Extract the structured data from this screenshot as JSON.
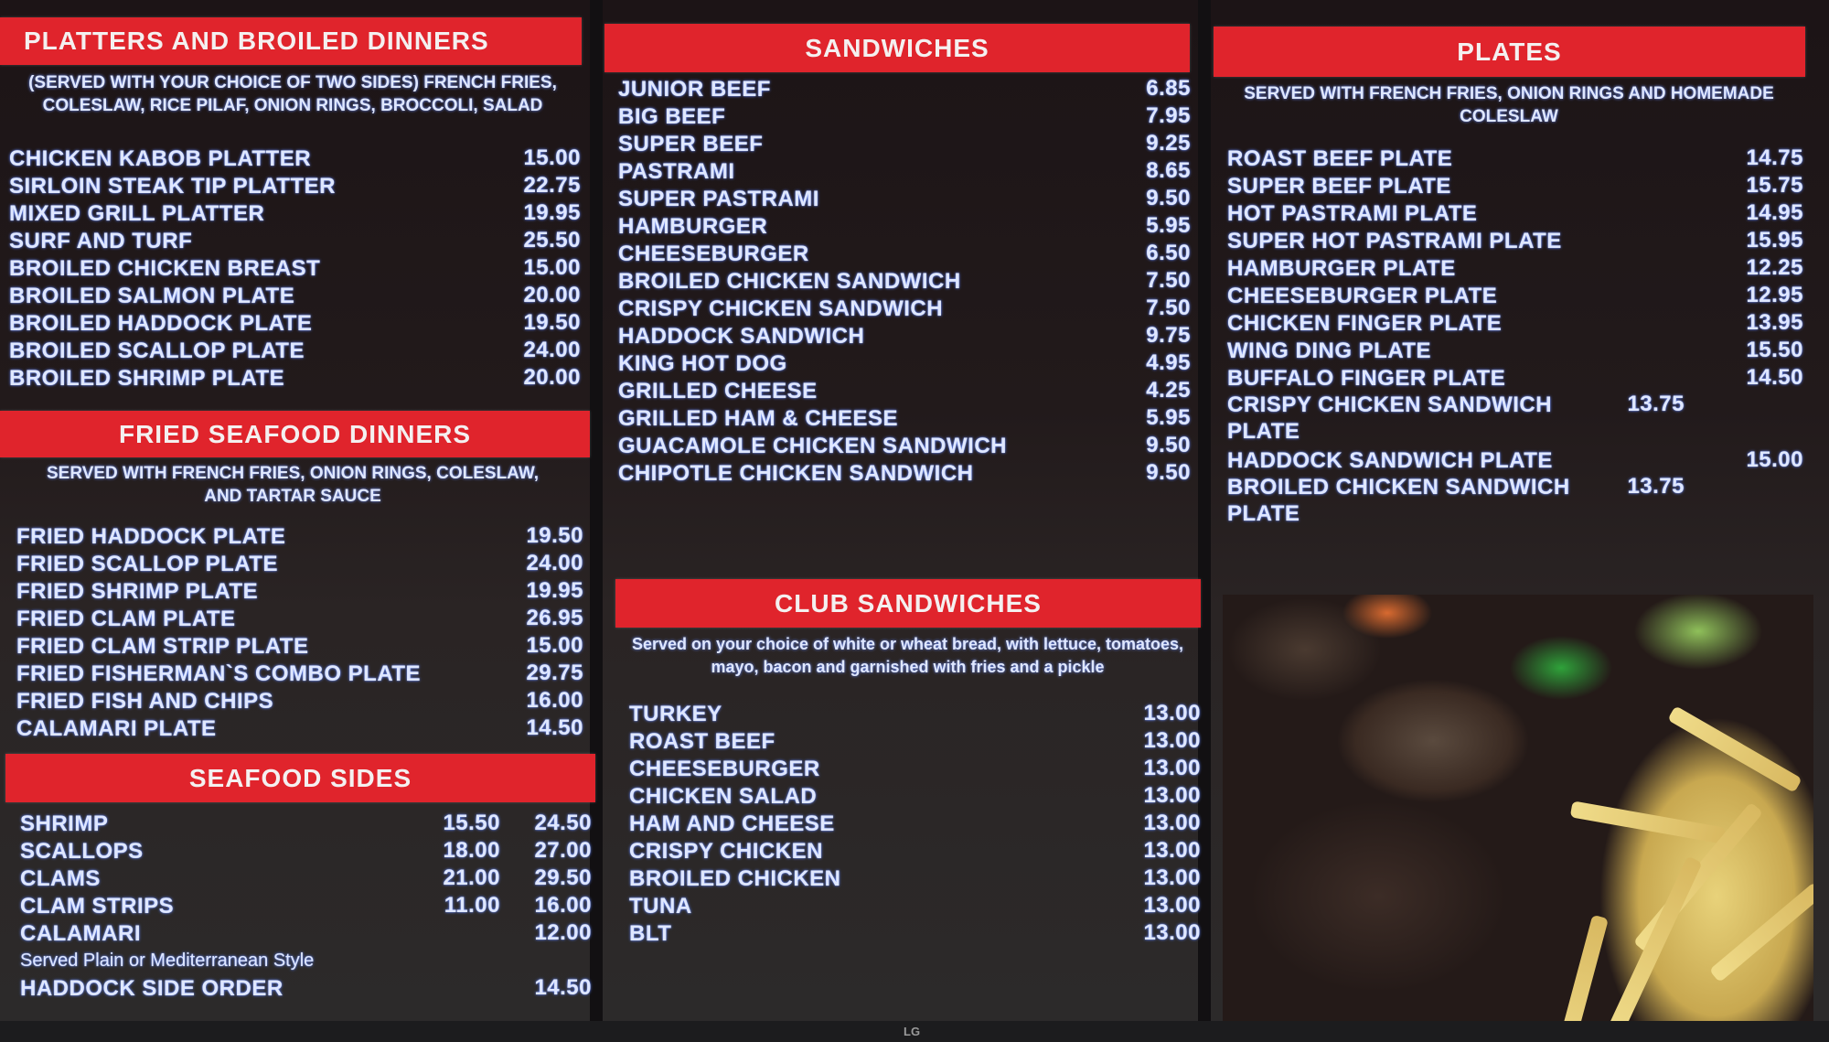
{
  "brand": "LG",
  "platters": {
    "title": "PLATTERS AND BROILED DINNERS",
    "note": "(SERVED WITH YOUR CHOICE OF TWO SIDES) FRENCH FRIES, COLESLAW, RICE PILAF, ONION RINGS, BROCCOLI, SALAD",
    "items": [
      {
        "name": "CHICKEN KABOB PLATTER",
        "price": "15.00"
      },
      {
        "name": "SIRLOIN STEAK TIP PLATTER",
        "price": "22.75"
      },
      {
        "name": "MIXED GRILL PLATTER",
        "price": "19.95"
      },
      {
        "name": "SURF AND TURF",
        "price": "25.50"
      },
      {
        "name": "BROILED CHICKEN BREAST",
        "price": "15.00"
      },
      {
        "name": "BROILED SALMON PLATE",
        "price": "20.00"
      },
      {
        "name": "BROILED HADDOCK PLATE",
        "price": "19.50"
      },
      {
        "name": "BROILED SCALLOP PLATE",
        "price": "24.00"
      },
      {
        "name": "BROILED SHRIMP PLATE",
        "price": "20.00"
      }
    ]
  },
  "fried": {
    "title": "FRIED SEAFOOD DINNERS",
    "note": "SERVED WITH FRENCH FRIES, ONION RINGS, COLESLAW, AND TARTAR SAUCE",
    "items": [
      {
        "name": "FRIED HADDOCK PLATE",
        "price": "19.50"
      },
      {
        "name": "FRIED SCALLOP PLATE",
        "price": "24.00"
      },
      {
        "name": "FRIED SHRIMP PLATE",
        "price": "19.95"
      },
      {
        "name": "FRIED CLAM PLATE",
        "price": "26.95"
      },
      {
        "name": "FRIED CLAM STRIP PLATE",
        "price": "15.00"
      },
      {
        "name": "FRIED FISHERMAN`S COMBO PLATE",
        "price": "29.75"
      },
      {
        "name": "FRIED FISH AND CHIPS",
        "price": "16.00"
      },
      {
        "name": "CALAMARI PLATE",
        "price": "14.50"
      }
    ]
  },
  "sides": {
    "title": "SEAFOOD SIDES",
    "items": [
      {
        "name": "SHRIMP",
        "price": "15.50",
        "price2": "24.50"
      },
      {
        "name": "SCALLOPS",
        "price": "18.00",
        "price2": "27.00"
      },
      {
        "name": "CLAMS",
        "price": "21.00",
        "price2": "29.50"
      },
      {
        "name": "CLAM STRIPS",
        "price": "11.00",
        "price2": "16.00"
      },
      {
        "name": "CALAMARI",
        "price": "",
        "price2": "12.00"
      },
      {
        "name": "Served Plain or Mediterranean Style",
        "price": "",
        "price2": "",
        "small": true
      },
      {
        "name": "HADDOCK SIDE ORDER",
        "price": "",
        "price2": "14.50"
      }
    ]
  },
  "sandwiches": {
    "title": "SANDWICHES",
    "items": [
      {
        "name": "JUNIOR BEEF",
        "price": "6.85"
      },
      {
        "name": "BIG BEEF",
        "price": "7.95"
      },
      {
        "name": "SUPER BEEF",
        "price": "9.25"
      },
      {
        "name": "PASTRAMI",
        "price": "8.65"
      },
      {
        "name": "SUPER PASTRAMI",
        "price": "9.50"
      },
      {
        "name": "HAMBURGER",
        "price": "5.95"
      },
      {
        "name": "CHEESEBURGER",
        "price": "6.50"
      },
      {
        "name": "BROILED CHICKEN SANDWICH",
        "price": "7.50"
      },
      {
        "name": "CRISPY CHICKEN SANDWICH",
        "price": "7.50"
      },
      {
        "name": "HADDOCK SANDWICH",
        "price": "9.75"
      },
      {
        "name": "KING HOT DOG",
        "price": "4.95"
      },
      {
        "name": "GRILLED CHEESE",
        "price": "4.25"
      },
      {
        "name": "GRILLED HAM & CHEESE",
        "price": "5.95"
      },
      {
        "name": "GUACAMOLE CHICKEN SANDWICH",
        "price": "9.50"
      },
      {
        "name": "CHIPOTLE CHICKEN SANDWICH",
        "price": "9.50"
      }
    ]
  },
  "club": {
    "title": "CLUB SANDWICHES",
    "note": "Served on your choice of white or wheat bread, with lettuce, tomatoes, mayo, bacon and garnished with fries and a pickle",
    "items": [
      {
        "name": "TURKEY",
        "price": "13.00"
      },
      {
        "name": "ROAST BEEF",
        "price": "13.00"
      },
      {
        "name": "CHEESEBURGER",
        "price": "13.00"
      },
      {
        "name": "CHICKEN SALAD",
        "price": "13.00"
      },
      {
        "name": "HAM AND CHEESE",
        "price": "13.00"
      },
      {
        "name": "CRISPY CHICKEN",
        "price": "13.00"
      },
      {
        "name": "BROILED CHICKEN",
        "price": "13.00"
      },
      {
        "name": "TUNA",
        "price": "13.00"
      },
      {
        "name": "BLT",
        "price": "13.00"
      }
    ]
  },
  "plates": {
    "title": "PLATES",
    "note": "SERVED WITH FRENCH FRIES, ONION RINGS AND HOMEMADE COLESLAW",
    "items": [
      {
        "name": "ROAST BEEF PLATE",
        "price": "14.75"
      },
      {
        "name": "SUPER BEEF PLATE",
        "price": "15.75"
      },
      {
        "name": "HOT PASTRAMI PLATE",
        "price": "14.95"
      },
      {
        "name": "SUPER HOT PASTRAMI PLATE",
        "price": "15.95"
      },
      {
        "name": "HAMBURGER PLATE",
        "price": "12.25"
      },
      {
        "name": "CHEESEBURGER PLATE",
        "price": "12.95"
      },
      {
        "name": "CHICKEN FINGER PLATE",
        "price": "13.95"
      },
      {
        "name": "WING DING PLATE",
        "price": "15.50"
      },
      {
        "name": "BUFFALO FINGER PLATE",
        "price": "14.50"
      },
      {
        "name": "CRISPY CHICKEN SANDWICH PLATE",
        "price": "13.75",
        "wrap": true
      },
      {
        "name": "HADDOCK SANDWICH PLATE",
        "price": "15.00"
      },
      {
        "name": "BROILED CHICKEN SANDWICH PLATE",
        "price": "13.75",
        "wrap": true
      }
    ]
  },
  "colors": {
    "header_red": "#e0242c",
    "text_blue": "#dfe7ff"
  },
  "photo": {
    "icon": "steak-tips-with-fries-photo"
  }
}
